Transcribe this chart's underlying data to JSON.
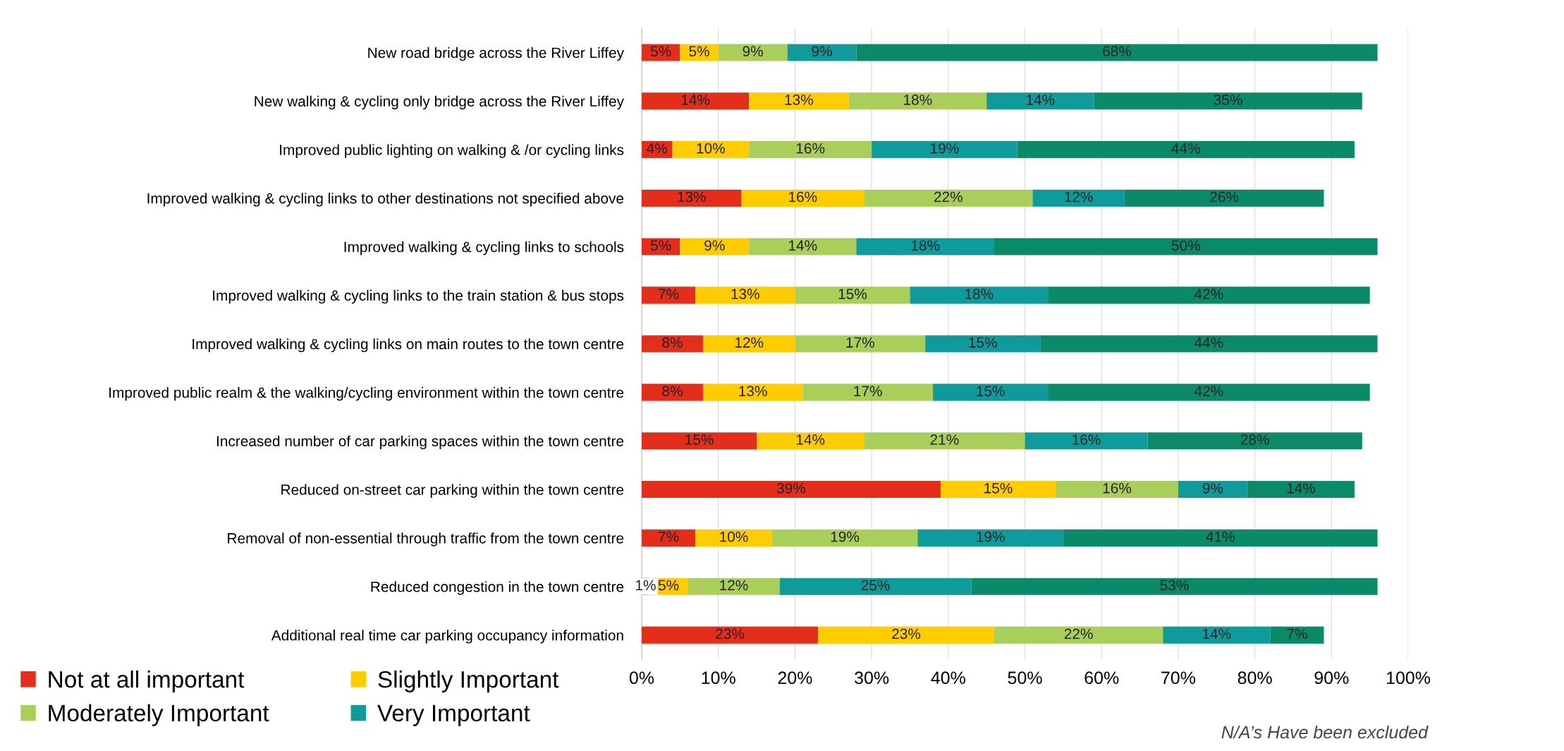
{
  "chart_data": {
    "type": "bar",
    "orientation": "horizontal",
    "stacked": true,
    "categories": [
      "New road bridge across the River Liffey",
      "New walking & cycling only bridge across the River Liffey",
      "Improved public lighting on walking & /or cycling links",
      "Improved walking & cycling links to other destinations not specified above",
      "Improved walking & cycling links to schools",
      "Improved walking & cycling links to the train station & bus stops",
      "Improved walking & cycling links on main routes to the town centre",
      "Improved public realm & the walking/cycling environment within the town centre",
      "Increased number of car parking spaces within the town centre",
      "Reduced on-street car parking within the town centre",
      "Removal of non-essential through traffic from the town centre",
      "Reduced congestion in the town centre",
      "Additional real time car parking occupancy information"
    ],
    "series": [
      {
        "name": "Not at all important",
        "color": "#e52d1c",
        "values": [
          5,
          14,
          4,
          13,
          5,
          7,
          8,
          8,
          15,
          39,
          7,
          1,
          23
        ],
        "value_labels": [
          "5%",
          "14%",
          "4%",
          "13%",
          "5%",
          "7%",
          "8%",
          "8%",
          "15%",
          "39%",
          "7%",
          "1%",
          "23%"
        ]
      },
      {
        "name": "Slightly Important",
        "color": "#ffcc00",
        "values": [
          5,
          13,
          10,
          16,
          9,
          13,
          12,
          13,
          14,
          15,
          10,
          5,
          23
        ],
        "value_labels": [
          "5%",
          "13%",
          "10%",
          "16%",
          "9%",
          "13%",
          "12%",
          "13%",
          "14%",
          "15%",
          "10%",
          "5%",
          "23%"
        ]
      },
      {
        "name": "Moderately Important",
        "color": "#a9cf5a",
        "values": [
          9,
          18,
          16,
          22,
          14,
          15,
          17,
          17,
          21,
          16,
          19,
          12,
          22
        ],
        "value_labels": [
          "9%",
          "18%",
          "16%",
          "22%",
          "14%",
          "15%",
          "17%",
          "17%",
          "21%",
          "16%",
          "19%",
          "12%",
          "22%"
        ]
      },
      {
        "name": "Very Important",
        "color": "#0f9b9b",
        "values": [
          9,
          14,
          19,
          12,
          18,
          18,
          15,
          15,
          16,
          9,
          19,
          25,
          14
        ],
        "value_labels": [
          "9%",
          "14%",
          "19%",
          "12%",
          "18%",
          "18%",
          "15%",
          "15%",
          "16%",
          "9%",
          "19%",
          "25%",
          "14%"
        ]
      },
      {
        "color": "#0a8a68",
        "values": [
          68,
          35,
          44,
          26,
          50,
          42,
          44,
          42,
          28,
          14,
          41,
          53,
          7
        ],
        "value_labels": [
          "68%",
          "35%",
          "44%",
          "26%",
          "50%",
          "42%",
          "44%",
          "42%",
          "28%",
          "14%",
          "41%",
          "53%",
          "7%"
        ]
      }
    ],
    "xlim": [
      0,
      100
    ],
    "xticks": [
      {
        "value": 0,
        "label": "0%"
      },
      {
        "value": 10,
        "label": "10%"
      },
      {
        "value": 20,
        "label": "20%"
      },
      {
        "value": 30,
        "label": "30%"
      },
      {
        "value": 40,
        "label": "40%"
      },
      {
        "value": 50,
        "label": "50%"
      },
      {
        "value": 60,
        "label": "60%"
      },
      {
        "value": 70,
        "label": "70%"
      },
      {
        "value": 80,
        "label": "80%"
      },
      {
        "value": 90,
        "label": "90%"
      },
      {
        "value": 100,
        "label": "100%"
      }
    ],
    "grid": "x",
    "legend": "bottom left",
    "annotations": [
      "N/A’s Have been excluded"
    ]
  }
}
